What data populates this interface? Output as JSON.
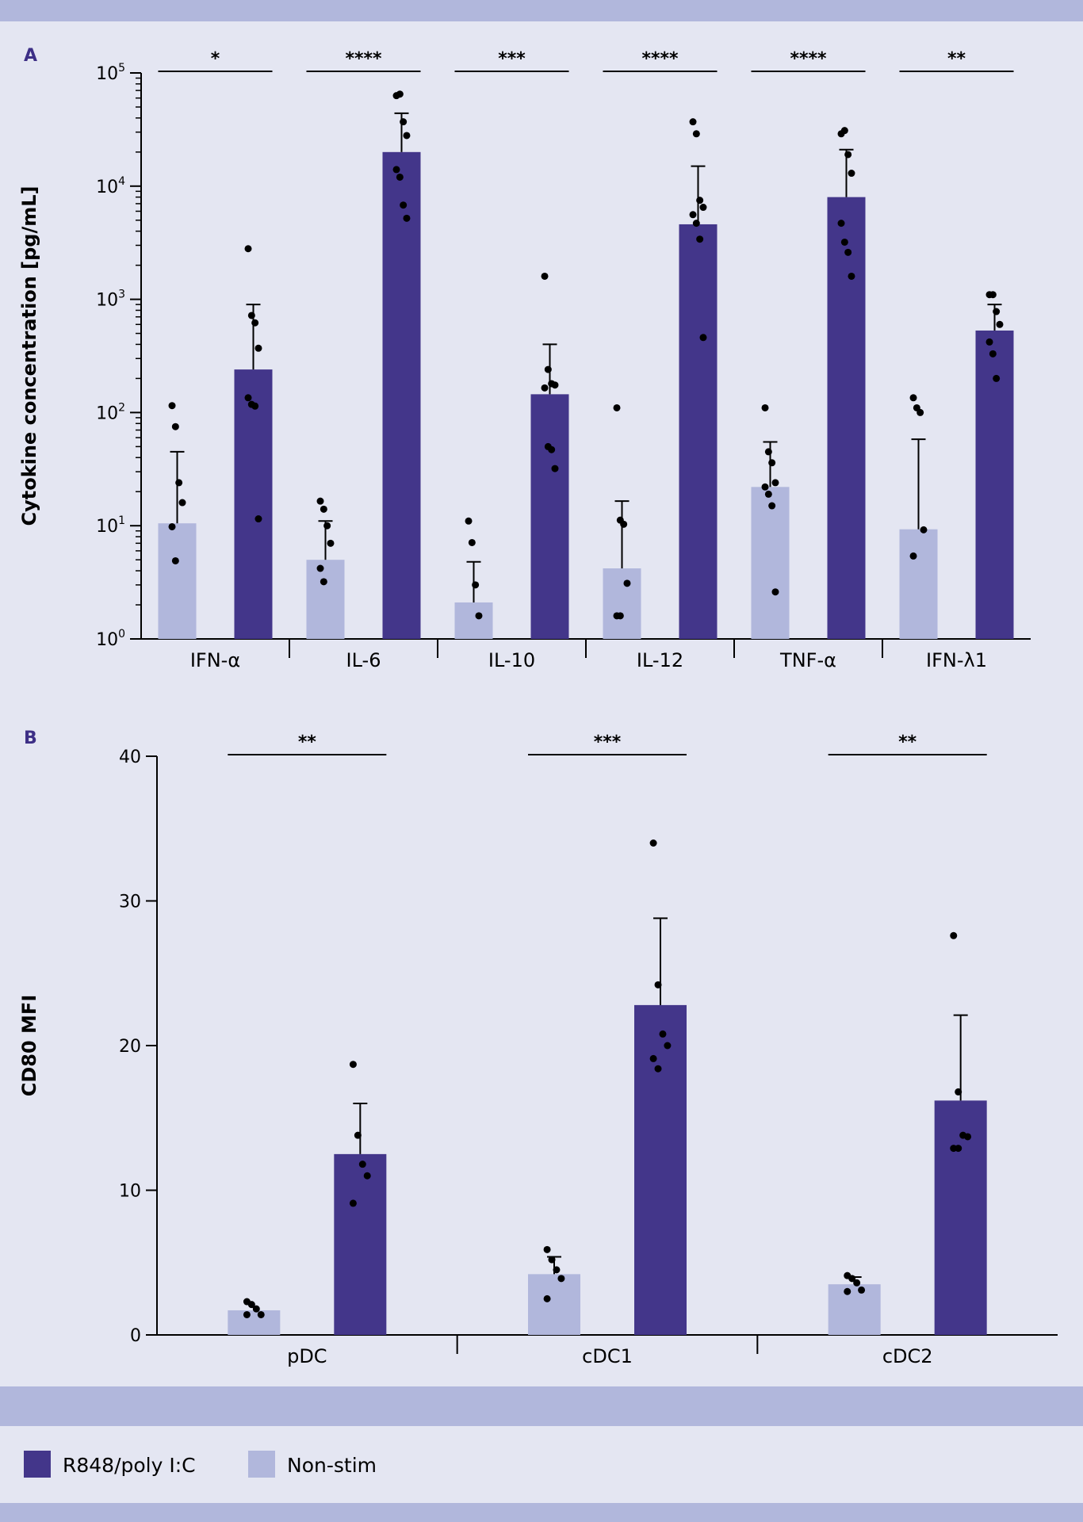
{
  "colors": {
    "stim": "#43368A",
    "nonstim": "#B1B7DC",
    "band": "#B1B7DC",
    "background": "#E4E6F2",
    "panel_letter": "#3D2F86",
    "ink": "#000000"
  },
  "legend": {
    "items": [
      {
        "label": "R848/poly I:C",
        "color": "#43368A"
      },
      {
        "label": "Non-stim",
        "color": "#B1B7DC"
      }
    ]
  },
  "chart_data": [
    {
      "panel": "A",
      "type": "bar",
      "scale": "log10",
      "title": "",
      "xlabel": "",
      "ylabel": "Cytokine concentration [pg/mL]",
      "ylim": [
        1,
        100000
      ],
      "yticks": [
        {
          "value": 1,
          "base": "10",
          "exp": "0"
        },
        {
          "value": 10,
          "base": "10",
          "exp": "1"
        },
        {
          "value": 100,
          "base": "10",
          "exp": "2"
        },
        {
          "value": 1000,
          "base": "10",
          "exp": "3"
        },
        {
          "value": 10000,
          "base": "10",
          "exp": "4"
        },
        {
          "value": 100000,
          "base": "10",
          "exp": "5"
        }
      ],
      "categories": [
        "IFN-α",
        "IL-6",
        "IL-10",
        "IL-12",
        "TNF-α",
        "IFN-λ1"
      ],
      "significance": [
        "*",
        "****",
        "***",
        "****",
        "****",
        "**"
      ],
      "series": [
        {
          "name": "Non-stim",
          "values": [
            10.5,
            5,
            2.1,
            4.2,
            22,
            9.3
          ],
          "errors": [
            45,
            11,
            4.8,
            16.5,
            55,
            58
          ],
          "points": [
            [
              115,
              75,
              24,
              16,
              9.8,
              4.9
            ],
            [
              16.5,
              14,
              10,
              7,
              4.2,
              3.2
            ],
            [
              11,
              7.1,
              3,
              1.6
            ],
            [
              110,
              11.2,
              10.3,
              3.1,
              1.6,
              1.6
            ],
            [
              110,
              45,
              36,
              24,
              22,
              19,
              15,
              2.6
            ],
            [
              135,
              110,
              100,
              9.2,
              5.4
            ]
          ]
        },
        {
          "name": "R848/poly I:C",
          "values": [
            240,
            20000,
            145,
            4600,
            8000,
            530
          ],
          "errors": [
            900,
            44000,
            400,
            15000,
            21000,
            900
          ],
          "points": [
            [
              2800,
              720,
              620,
              370,
              135,
              118,
              114,
              11.5
            ],
            [
              63000,
              65000,
              37000,
              28000,
              14000,
              12000,
              6800,
              5200
            ],
            [
              1600,
              240,
              180,
              175,
              165,
              50,
              47,
              32
            ],
            [
              37000,
              29000,
              7500,
              6500,
              5600,
              4700,
              3400,
              460
            ],
            [
              29000,
              31000,
              19000,
              13000,
              4700,
              3200,
              2600,
              1600
            ],
            [
              1100,
              1100,
              780,
              600,
              420,
              330,
              200
            ]
          ]
        }
      ]
    },
    {
      "panel": "B",
      "type": "bar",
      "scale": "linear",
      "title": "",
      "xlabel": "",
      "ylabel": "CD80 MFI",
      "ylim": [
        0,
        40
      ],
      "yticks": [
        {
          "value": 0,
          "label": "0"
        },
        {
          "value": 10,
          "label": "10"
        },
        {
          "value": 20,
          "label": "20"
        },
        {
          "value": 30,
          "label": "30"
        },
        {
          "value": 40,
          "label": "40"
        }
      ],
      "categories": [
        "pDC",
        "cDC1",
        "cDC2"
      ],
      "significance": [
        "**",
        "***",
        "**"
      ],
      "series": [
        {
          "name": "Non-stim",
          "values": [
            1.7,
            4.2,
            3.5
          ],
          "errors": [
            null,
            5.4,
            4.0
          ],
          "points": [
            [
              2.3,
              2.1,
              1.8,
              1.4,
              1.4
            ],
            [
              5.9,
              5.2,
              4.5,
              3.9,
              2.5
            ],
            [
              4.1,
              3.9,
              3.6,
              3.1,
              3.0
            ]
          ]
        },
        {
          "name": "R848/poly I:C",
          "values": [
            12.5,
            22.8,
            16.2
          ],
          "errors": [
            16.0,
            28.8,
            22.1
          ],
          "points": [
            [
              18.7,
              13.8,
              11.8,
              11.0,
              9.1
            ],
            [
              34.0,
              24.2,
              20.8,
              20.0,
              19.1,
              18.4
            ],
            [
              27.6,
              16.8,
              13.8,
              13.7,
              12.9,
              12.9
            ]
          ]
        }
      ]
    }
  ]
}
